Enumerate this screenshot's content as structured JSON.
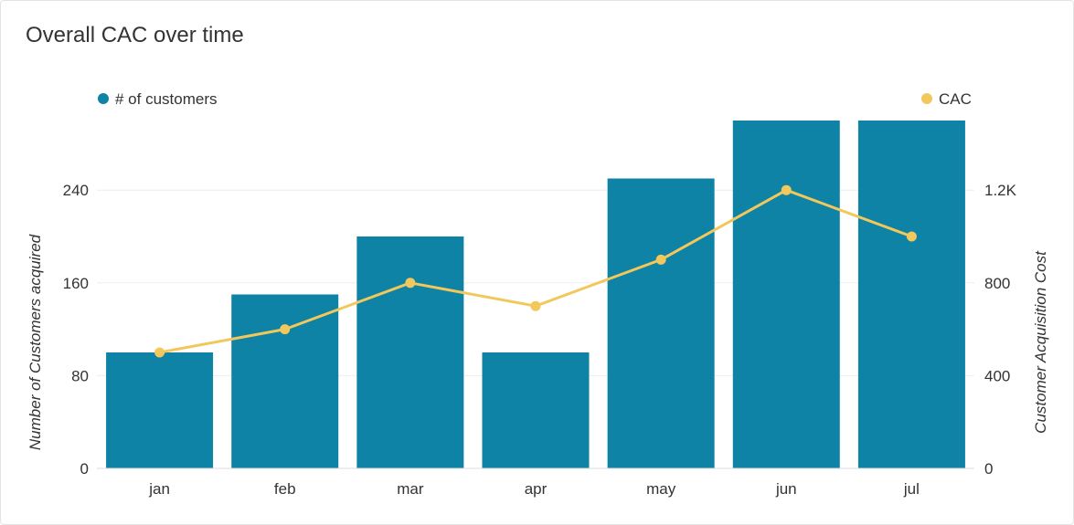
{
  "title": "Overall CAC over time",
  "colors": {
    "bar": "#0e83a5",
    "line": "#f2c75c",
    "grid": "#eeeeee",
    "text": "#333333"
  },
  "chart_data": {
    "type": "bar",
    "title": "Overall CAC over time",
    "categories": [
      "jan",
      "feb",
      "mar",
      "apr",
      "may",
      "jun",
      "jul"
    ],
    "series": [
      {
        "name": "# of customers",
        "type": "bar",
        "axis": "left",
        "values": [
          100,
          150,
          200,
          100,
          250,
          300,
          300
        ]
      },
      {
        "name": "CAC",
        "type": "line",
        "axis": "right",
        "values": [
          500,
          600,
          800,
          700,
          900,
          1200,
          1000
        ]
      }
    ],
    "ylabel": "Number of Customers acquired",
    "ylim": [
      0,
      300
    ],
    "yticks": [
      "0",
      "80",
      "160",
      "240"
    ],
    "y2label": "Customer Acquisition Cost",
    "y2lim": [
      0,
      1500
    ],
    "y2ticks": [
      "0",
      "400",
      "800",
      "1.2K"
    ],
    "grid": true,
    "legend_position": "top"
  }
}
